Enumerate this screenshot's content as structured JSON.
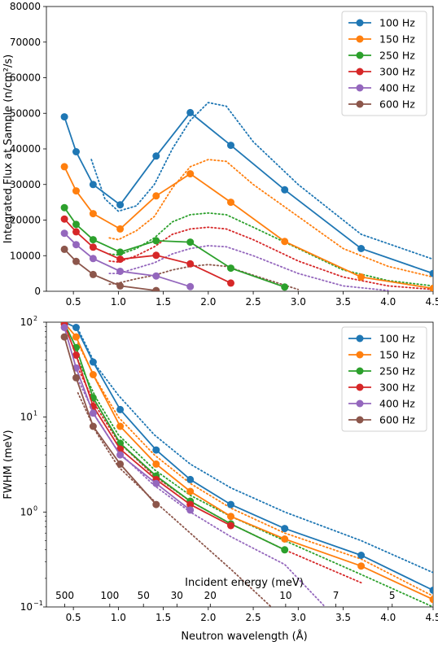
{
  "chart_data": [
    {
      "type": "line",
      "ylabel": "Integrated Flux at Sample (n/cm²/s)",
      "xlim": [
        0.2,
        4.5
      ],
      "ylim": [
        0,
        80000
      ],
      "x_ticks": [
        0.5,
        1.0,
        1.5,
        2.0,
        2.5,
        3.0,
        3.5,
        4.0,
        4.5
      ],
      "x_tick_labels": [
        "0.5",
        "1.0",
        "1.5",
        "2.0",
        "2.5",
        "3.0",
        "3.5",
        "4.0",
        "4.5"
      ],
      "y_ticks": [
        0,
        10000,
        20000,
        30000,
        40000,
        50000,
        60000,
        70000,
        80000
      ],
      "y_tick_labels": [
        "0",
        "10000",
        "20000",
        "30000",
        "40000",
        "50000",
        "60000",
        "70000",
        "80000"
      ],
      "legend_position": "top-right",
      "series": [
        {
          "name": "100 Hz",
          "color": "#1f77b4",
          "x": [
            0.4,
            0.53,
            0.72,
            1.02,
            1.42,
            1.8,
            2.25,
            2.85,
            3.7,
            4.5
          ],
          "y": [
            49000,
            39200,
            30000,
            24300,
            38000,
            50200,
            41000,
            28500,
            12000,
            5000
          ],
          "dotted": {
            "x": [
              0.7,
              0.85,
              1.0,
              1.2,
              1.4,
              1.6,
              1.8,
              2.0,
              2.2,
              2.5,
              3.0,
              3.7,
              4.5
            ],
            "y": [
              37000,
              26000,
              22500,
              24000,
              30000,
              40000,
              48000,
              53000,
              52000,
              42000,
              30000,
              16000,
              9000
            ]
          }
        },
        {
          "name": "150 Hz",
          "color": "#ff7f0e",
          "x": [
            0.4,
            0.53,
            0.72,
            1.02,
            1.42,
            1.8,
            2.25,
            2.85,
            3.7,
            4.5
          ],
          "y": [
            35000,
            28200,
            21800,
            17500,
            26800,
            33000,
            25000,
            14000,
            4000,
            800
          ],
          "dotted": {
            "x": [
              0.9,
              1.0,
              1.2,
              1.4,
              1.6,
              1.8,
              2.0,
              2.2,
              2.5,
              3.0,
              3.5,
              4.0,
              4.5
            ],
            "y": [
              15000,
              14500,
              17000,
              21000,
              29000,
              35000,
              37000,
              36500,
              30000,
              21000,
              12000,
              7000,
              4000
            ]
          }
        },
        {
          "name": "250 Hz",
          "color": "#2ca02c",
          "x": [
            0.4,
            0.53,
            0.72,
            1.02,
            1.42,
            1.8,
            2.25,
            2.85
          ],
          "y": [
            23500,
            18800,
            14500,
            11000,
            14200,
            13800,
            6500,
            1200
          ],
          "dotted": {
            "x": [
              0.9,
              1.0,
              1.2,
              1.4,
              1.6,
              1.8,
              2.0,
              2.2,
              2.5,
              3.0,
              3.5,
              4.0,
              4.5
            ],
            "y": [
              10500,
              10200,
              12000,
              15000,
              19500,
              21500,
              22000,
              21500,
              18000,
              12000,
              6000,
              3000,
              1500
            ]
          }
        },
        {
          "name": "300 Hz",
          "color": "#d62728",
          "x": [
            0.4,
            0.53,
            0.72,
            1.02,
            1.42,
            1.8,
            2.25
          ],
          "y": [
            20300,
            16700,
            12400,
            9000,
            10100,
            7700,
            2300
          ],
          "dotted": {
            "x": [
              0.9,
              1.0,
              1.2,
              1.4,
              1.6,
              1.8,
              2.0,
              2.2,
              2.5,
              3.0,
              3.5,
              4.0,
              4.5
            ],
            "y": [
              8500,
              8200,
              10000,
              12500,
              16000,
              17500,
              18000,
              17500,
              14500,
              8500,
              4000,
              1500,
              500
            ]
          }
        },
        {
          "name": "400 Hz",
          "color": "#9467bd",
          "x": [
            0.4,
            0.53,
            0.72,
            1.02,
            1.42,
            1.8
          ],
          "y": [
            16300,
            13100,
            9200,
            5600,
            4300,
            1300
          ],
          "dotted": {
            "x": [
              0.9,
              1.0,
              1.2,
              1.4,
              1.6,
              1.8,
              2.0,
              2.2,
              2.5,
              3.0,
              3.5,
              4.0
            ],
            "y": [
              5000,
              5000,
              6500,
              8000,
              10500,
              12000,
              12800,
              12500,
              10000,
              5000,
              1500,
              200
            ]
          }
        },
        {
          "name": "600 Hz",
          "color": "#8c564b",
          "x": [
            0.4,
            0.53,
            0.72,
            1.02,
            1.42
          ],
          "y": [
            11800,
            8400,
            4700,
            1500,
            200
          ],
          "dotted": {
            "x": [
              0.9,
              1.0,
              1.2,
              1.4,
              1.6,
              1.8,
              2.0,
              2.2,
              2.5,
              3.0
            ],
            "y": [
              2000,
              2300,
              3500,
              4500,
              6000,
              7000,
              7500,
              7000,
              4500,
              500
            ]
          }
        }
      ]
    },
    {
      "type": "line",
      "xlabel": "Neutron wavelength (Å)",
      "ylabel": "FWHM (meV)",
      "yscale": "log",
      "xlim": [
        0.2,
        4.5
      ],
      "ylim": [
        0.1,
        100
      ],
      "x_ticks": [
        0.5,
        1.0,
        1.5,
        2.0,
        2.5,
        3.0,
        3.5,
        4.0,
        4.5
      ],
      "x_tick_labels": [
        "0.5",
        "1.0",
        "1.5",
        "2.0",
        "2.5",
        "3.0",
        "3.5",
        "4.0",
        "4.5"
      ],
      "y_ticks": [
        0.1,
        1,
        10,
        100
      ],
      "y_tick_labels": [
        "10",
        "10",
        "10",
        "10"
      ],
      "y_tick_exponents": [
        "−1",
        "0",
        "1",
        "2"
      ],
      "legend_position": "top-right",
      "secondary_axis": {
        "label": "Incident energy (meV)",
        "ticks": [
          500,
          100,
          50,
          30,
          20,
          10,
          7,
          5
        ],
        "tick_labels": [
          "500",
          "100",
          "50",
          "30",
          "20",
          "10",
          "7",
          "5"
        ]
      },
      "series": [
        {
          "name": "100 Hz",
          "color": "#1f77b4",
          "x": [
            0.4,
            0.53,
            0.72,
            1.02,
            1.42,
            1.8,
            2.25,
            2.85,
            3.7,
            4.5
          ],
          "y": [
            100,
            88,
            38,
            12,
            4.5,
            2.2,
            1.2,
            0.67,
            0.35,
            0.15
          ],
          "dotted": {
            "x": [
              0.55,
              0.75,
              1.0,
              1.4,
              1.8,
              2.25,
              2.85,
              3.7,
              4.5
            ],
            "y": [
              85,
              35,
              17,
              6.5,
              3.2,
              1.8,
              1.0,
              0.5,
              0.23
            ]
          }
        },
        {
          "name": "150 Hz",
          "color": "#ff7f0e",
          "x": [
            0.4,
            0.53,
            0.72,
            1.02,
            1.42,
            1.8,
            2.25,
            2.85,
            3.7,
            4.5
          ],
          "y": [
            98,
            70,
            28,
            8,
            3.2,
            1.65,
            0.9,
            0.52,
            0.27,
            0.12
          ],
          "dotted": {
            "x": [
              0.55,
              0.75,
              1.0,
              1.4,
              1.8,
              2.25,
              2.85,
              3.7,
              4.5
            ],
            "y": [
              60,
              25,
              10,
              4.0,
              2.0,
              1.1,
              0.6,
              0.32,
              0.13
            ]
          }
        },
        {
          "name": "250 Hz",
          "color": "#2ca02c",
          "x": [
            0.4,
            0.53,
            0.72,
            1.02,
            1.42,
            1.8,
            2.25,
            2.85
          ],
          "y": [
            97,
            54,
            16,
            5.3,
            2.4,
            1.3,
            0.75,
            0.4
          ],
          "dotted": {
            "x": [
              0.55,
              0.75,
              1.0,
              1.4,
              1.8,
              2.25,
              2.85,
              3.7,
              4.5
            ],
            "y": [
              40,
              16,
              6.5,
              2.8,
              1.5,
              0.9,
              0.5,
              0.22,
              0.1
            ]
          }
        },
        {
          "name": "300 Hz",
          "color": "#d62728",
          "x": [
            0.4,
            0.53,
            0.72,
            1.02,
            1.42,
            1.8,
            2.25
          ],
          "y": [
            95,
            45,
            13,
            4.6,
            2.2,
            1.2,
            0.72
          ],
          "dotted": {
            "x": [
              0.55,
              0.75,
              1.0,
              1.4,
              1.8,
              2.25,
              2.85,
              3.7
            ],
            "y": [
              33,
              13,
              5.5,
              2.4,
              1.3,
              0.75,
              0.4,
              0.18
            ]
          }
        },
        {
          "name": "400 Hz",
          "color": "#9467bd",
          "x": [
            0.4,
            0.53,
            0.72,
            1.02,
            1.42,
            1.8
          ],
          "y": [
            88,
            33,
            11,
            4.0,
            2.0,
            1.05
          ],
          "dotted": {
            "x": [
              0.55,
              0.75,
              1.0,
              1.4,
              1.8,
              2.25,
              2.85,
              3.3
            ],
            "y": [
              25,
              10,
              4.3,
              1.9,
              1.0,
              0.55,
              0.28,
              0.1
            ]
          }
        },
        {
          "name": "600 Hz",
          "color": "#8c564b",
          "x": [
            0.4,
            0.53,
            0.72,
            1.02,
            1.42
          ],
          "y": [
            70,
            26,
            8,
            3.2,
            1.2
          ],
          "dotted": {
            "x": [
              0.55,
              0.75,
              1.0,
              1.4,
              1.8,
              2.25,
              2.7
            ],
            "y": [
              18,
              7,
              3.0,
              1.3,
              0.6,
              0.25,
              0.1
            ]
          }
        }
      ]
    }
  ]
}
